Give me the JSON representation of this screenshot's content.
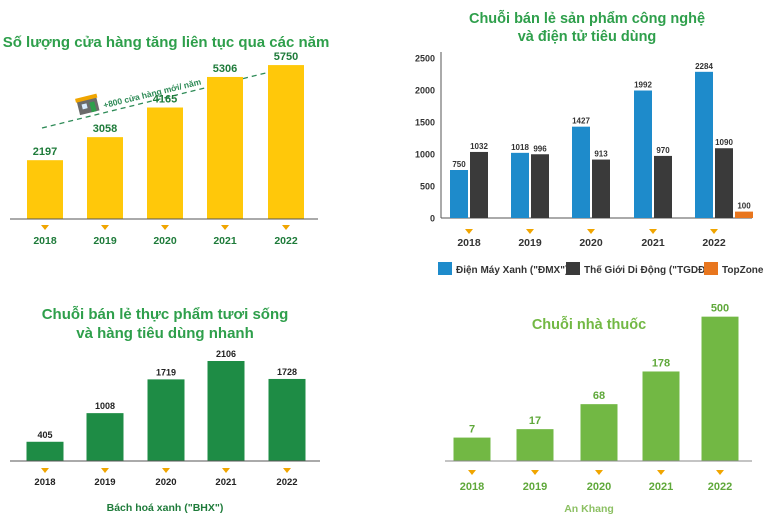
{
  "colors": {
    "yellow": "#FFC80A",
    "dark_green": "#1E8C45",
    "title_green": "#2E9F4B",
    "light_green": "#72B844",
    "blue": "#1E8BCB",
    "dark_gray": "#3A3A3A",
    "orange": "#E8761E",
    "marker": "#F0A500",
    "axis": "#666666",
    "dashed": "#2E8B57"
  },
  "chart_data": [
    {
      "id": "stores",
      "type": "bar",
      "title": "Số lượng cửa hàng tăng liên tục qua các năm",
      "annotation": "+800 cửa hàng mới/ năm",
      "annotation_icon": "store-icon",
      "categories": [
        "2018",
        "2019",
        "2020",
        "2021",
        "2022"
      ],
      "series": [
        {
          "values": [
            2197,
            3058,
            4165,
            5306,
            5750
          ],
          "color": "#FFC80A"
        }
      ],
      "ylim": [
        0,
        6500
      ],
      "grid": false
    },
    {
      "id": "electronics",
      "type": "bar",
      "title": "Chuỗi bán lẻ sản phẩm công nghệ\nvà điện tử tiêu dùng",
      "categories": [
        "2018",
        "2019",
        "2020",
        "2021",
        "2022"
      ],
      "series": [
        {
          "name": "Điện Máy Xanh (\"ĐMX\")",
          "values": [
            750,
            1018,
            1427,
            1992,
            2284
          ],
          "color": "#1E8BCB"
        },
        {
          "name": "Thế Giới Di Động (\"TGDĐ\")",
          "values": [
            1032,
            996,
            913,
            970,
            1090
          ],
          "color": "#3A3A3A"
        },
        {
          "name": "TopZone",
          "values": [
            null,
            null,
            null,
            null,
            100
          ],
          "color": "#E8761E"
        }
      ],
      "yticks": [
        "0",
        "500",
        "1000",
        "1500",
        "2000",
        "2500"
      ],
      "ylim": [
        0,
        2500
      ],
      "legend": "bottom",
      "grid": false
    },
    {
      "id": "grocery",
      "type": "bar",
      "title": "Chuỗi bán lẻ thực phẩm tươi sống\nvà hàng tiêu dùng nhanh",
      "categories": [
        "2018",
        "2019",
        "2020",
        "2021",
        "2022"
      ],
      "series": [
        {
          "name": "Bách hoá xanh (\"BHX\")",
          "values": [
            405,
            1008,
            1719,
            2106,
            1728
          ],
          "color": "#1E8C45"
        }
      ],
      "ylim": [
        0,
        2400
      ],
      "legend": "bottom",
      "grid": false
    },
    {
      "id": "pharmacy",
      "type": "bar",
      "title": "Chuỗi nhà thuốc",
      "categories": [
        "2018",
        "2019",
        "2020",
        "2021",
        "2022"
      ],
      "series": [
        {
          "name": "An Khang",
          "values": [
            7,
            17,
            68,
            178,
            500
          ],
          "color": "#72B844"
        }
      ],
      "scale": "non-linear (bar heights not proportional)",
      "legend": "bottom",
      "grid": false
    }
  ]
}
